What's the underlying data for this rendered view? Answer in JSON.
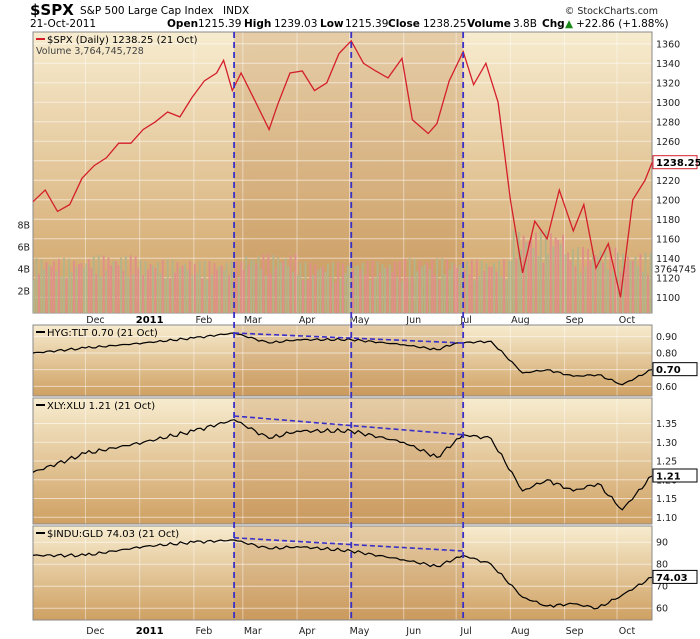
{
  "header": {
    "symbol": "$SPX",
    "name": "S&P 500 Large Cap Index",
    "exchange": "INDX",
    "date": "21-Oct-2011",
    "open_label": "Open",
    "open": "1215.39",
    "high_label": "High",
    "high": "1239.03",
    "low_label": "Low",
    "low": "1215.39",
    "close_label": "Close",
    "close": "1238.25",
    "volume_label": "Volume",
    "volume": "3.8B",
    "chg_label": "Chg",
    "chg": "+22.86 (+1.88%)",
    "chg_arrow": "▲",
    "watermark": "© StockCharts.com"
  },
  "colors": {
    "page_bg": "#ffffff",
    "panel_gradient_top": "#f7eccf",
    "panel_gradient_bottom": "#cfa062",
    "shade_band": "#c08c55",
    "price_line": "#d41f2b",
    "ratio_line": "#000000",
    "divergence": "#3a30c8",
    "volume_up": "#b4b48a",
    "volume_down": "#e0908a",
    "grid": "#ffffff"
  },
  "chart_data": [
    {
      "type": "line",
      "title": "$SPX (Daily) 1238.25 (21 Oct)",
      "legend_secondary": "Volume 3,764,745,728",
      "last_value_label": "1238.25",
      "volume_last_label": "3764745",
      "ylim": [
        1090,
        1370
      ],
      "y_ticks": [
        1100,
        1120,
        1140,
        1160,
        1180,
        1200,
        1220,
        1240,
        1260,
        1280,
        1300,
        1320,
        1340,
        1360
      ],
      "volume_ticks": [
        "2B",
        "4B",
        "6B",
        "8B"
      ],
      "x_labels": [
        "Dec",
        "2011",
        "Feb",
        "Mar",
        "Apr",
        "May",
        "Jun",
        "Jul",
        "Aug",
        "Sep",
        "Oct"
      ],
      "x_start": "2010-11-01",
      "x_end": "2011-10-21",
      "grid": true,
      "legend_position": "top-left",
      "series": [
        {
          "name": "$SPX (Daily)",
          "x": [
            "2010-11-01",
            "2010-11-08",
            "2010-11-15",
            "2010-11-22",
            "2010-11-29",
            "2010-12-06",
            "2010-12-13",
            "2010-12-20",
            "2010-12-27",
            "2011-01-03",
            "2011-01-10",
            "2011-01-17",
            "2011-01-24",
            "2011-01-31",
            "2011-02-07",
            "2011-02-14",
            "2011-02-18",
            "2011-02-23",
            "2011-02-28",
            "2011-03-07",
            "2011-03-16",
            "2011-03-21",
            "2011-03-28",
            "2011-04-04",
            "2011-04-11",
            "2011-04-18",
            "2011-04-25",
            "2011-05-02",
            "2011-05-09",
            "2011-05-16",
            "2011-05-23",
            "2011-05-31",
            "2011-06-06",
            "2011-06-15",
            "2011-06-20",
            "2011-06-27",
            "2011-07-05",
            "2011-07-11",
            "2011-07-18",
            "2011-07-25",
            "2011-08-01",
            "2011-08-08",
            "2011-08-15",
            "2011-08-22",
            "2011-08-29",
            "2011-09-06",
            "2011-09-12",
            "2011-09-19",
            "2011-09-26",
            "2011-10-03",
            "2011-10-10",
            "2011-10-17",
            "2011-10-21"
          ],
          "values": [
            1198,
            1210,
            1188,
            1195,
            1222,
            1235,
            1243,
            1258,
            1258,
            1272,
            1280,
            1290,
            1285,
            1305,
            1322,
            1330,
            1343,
            1312,
            1330,
            1305,
            1272,
            1298,
            1330,
            1332,
            1312,
            1320,
            1350,
            1363,
            1340,
            1332,
            1325,
            1345,
            1282,
            1268,
            1278,
            1322,
            1352,
            1318,
            1340,
            1300,
            1200,
            1125,
            1178,
            1160,
            1210,
            1168,
            1195,
            1130,
            1155,
            1100,
            1200,
            1220,
            1238
          ]
        },
        {
          "name": "Volume",
          "unit": "billions",
          "x": [
            "2010-11",
            "2010-12",
            "2011-01",
            "2011-02",
            "2011-03",
            "2011-04",
            "2011-05",
            "2011-06",
            "2011-07",
            "2011-08",
            "2011-09",
            "2011-10"
          ],
          "values": [
            4.0,
            4.2,
            3.9,
            3.8,
            4.3,
            3.7,
            3.8,
            4.0,
            3.9,
            6.0,
            4.8,
            4.4
          ]
        }
      ]
    },
    {
      "type": "line",
      "title": "HYG:TLT 0.70 (21 Oct)",
      "last_value_label": "0.70",
      "ylim": [
        0.56,
        0.95
      ],
      "y_ticks": [
        0.6,
        0.7,
        0.8,
        0.9
      ],
      "grid": true,
      "legend_position": "top-left",
      "series": [
        {
          "name": "HYG:TLT",
          "x": [
            "2010-11-01",
            "2010-12-01",
            "2011-01-03",
            "2011-02-01",
            "2011-02-24",
            "2011-03-16",
            "2011-04-01",
            "2011-05-02",
            "2011-06-01",
            "2011-06-20",
            "2011-07-01",
            "2011-07-21",
            "2011-08-08",
            "2011-08-22",
            "2011-09-06",
            "2011-09-20",
            "2011-10-04",
            "2011-10-21"
          ],
          "values": [
            0.8,
            0.83,
            0.86,
            0.89,
            0.92,
            0.86,
            0.88,
            0.88,
            0.85,
            0.82,
            0.86,
            0.87,
            0.68,
            0.7,
            0.66,
            0.67,
            0.61,
            0.7
          ]
        }
      ],
      "annotations": [
        "divergence line 2011-02-24 to 2011-07-05 (0.92 to 0.86)"
      ]
    },
    {
      "type": "line",
      "title": "XLY:XLU 1.21 (21 Oct)",
      "last_value_label": "1.21",
      "ylim": [
        1.09,
        1.41
      ],
      "y_ticks": [
        1.1,
        1.15,
        1.2,
        1.25,
        1.3,
        1.35
      ],
      "grid": true,
      "legend_position": "top-left",
      "series": [
        {
          "name": "XLY:XLU",
          "x": [
            "2010-11-01",
            "2010-12-01",
            "2011-01-03",
            "2011-02-01",
            "2011-02-24",
            "2011-03-16",
            "2011-04-01",
            "2011-05-02",
            "2011-06-01",
            "2011-06-20",
            "2011-07-05",
            "2011-07-21",
            "2011-08-08",
            "2011-08-22",
            "2011-09-06",
            "2011-09-20",
            "2011-10-04",
            "2011-10-21"
          ],
          "values": [
            1.22,
            1.27,
            1.3,
            1.33,
            1.36,
            1.31,
            1.33,
            1.33,
            1.3,
            1.26,
            1.32,
            1.31,
            1.17,
            1.2,
            1.17,
            1.19,
            1.12,
            1.21
          ]
        }
      ],
      "annotations": [
        "divergence line 2011-02-24 to 2011-07-05 (1.37 to 1.32)"
      ]
    },
    {
      "type": "line",
      "title": "$INDU:GLD 74.03 (21 Oct)",
      "last_value_label": "74.03",
      "ylim": [
        56,
        96
      ],
      "y_ticks": [
        60,
        70,
        80,
        90
      ],
      "grid": true,
      "legend_position": "top-left",
      "series": [
        {
          "name": "$INDU:GLD",
          "x": [
            "2010-11-01",
            "2010-12-01",
            "2011-01-03",
            "2011-02-01",
            "2011-02-24",
            "2011-03-16",
            "2011-04-01",
            "2011-05-02",
            "2011-06-01",
            "2011-06-20",
            "2011-07-05",
            "2011-07-21",
            "2011-08-08",
            "2011-08-22",
            "2011-09-06",
            "2011-09-20",
            "2011-10-04",
            "2011-10-21"
          ],
          "values": [
            84,
            84,
            88,
            90,
            91,
            87,
            88,
            86,
            82,
            79,
            84,
            80,
            65,
            61,
            62,
            60,
            66,
            74
          ]
        }
      ],
      "annotations": [
        "divergence line 2011-02-24 to 2011-07-05 (92 to 86)"
      ]
    }
  ],
  "markers": {
    "vertical_dates": [
      "2011-02-24",
      "2011-05-02",
      "2011-07-05"
    ]
  }
}
